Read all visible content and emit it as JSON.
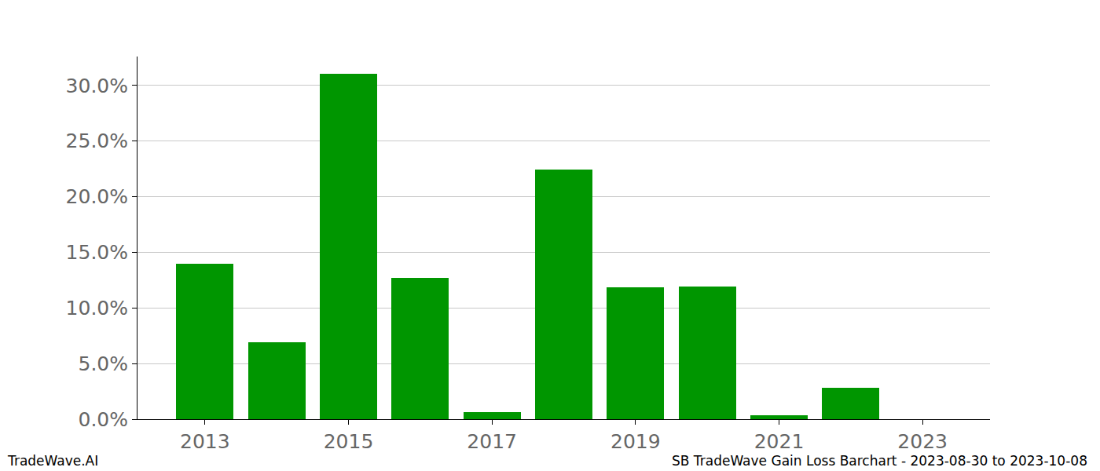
{
  "chart_data": {
    "type": "bar",
    "title": "SB TradeWave Gain Loss Barchart - 2023-08-30 to 2023-10-08",
    "source": "TradeWave.AI",
    "x": [
      2013,
      2014,
      2015,
      2016,
      2017,
      2018,
      2019,
      2020,
      2021,
      2022,
      2023
    ],
    "values": [
      14.0,
      6.9,
      31.05,
      12.7,
      0.64,
      22.45,
      11.86,
      11.93,
      0.35,
      2.82,
      0
    ],
    "color": "#009600",
    "xlim": [
      2012.06,
      2023.94
    ],
    "xticks": [
      2013,
      2015,
      2017,
      2019,
      2021,
      2023
    ],
    "ylim": [
      0,
      32.6
    ],
    "yticks": [
      {
        "value": 0,
        "label": "0.0%"
      },
      {
        "value": 5,
        "label": "5.0%"
      },
      {
        "value": 10,
        "label": "10.0%"
      },
      {
        "value": 15,
        "label": "15.0%"
      },
      {
        "value": 20,
        "label": "20.0%"
      },
      {
        "value": 25,
        "label": "25.0%"
      },
      {
        "value": 30,
        "label": "30.0%"
      }
    ],
    "grid": true
  }
}
